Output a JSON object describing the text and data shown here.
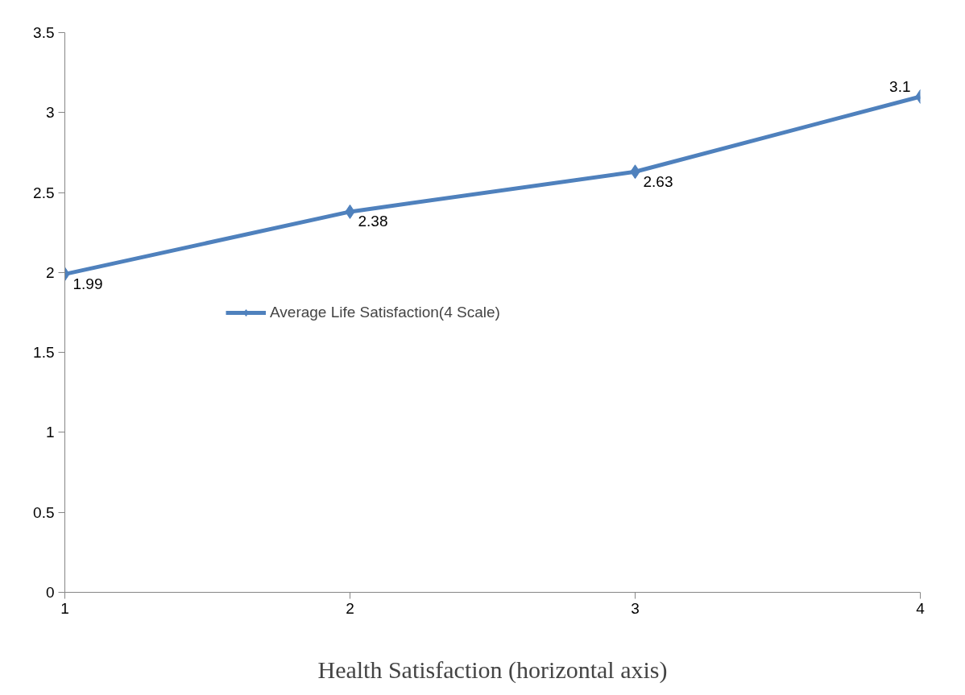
{
  "chart_data": {
    "type": "line",
    "xlabel": "Health Satisfaction (horizontal axis)",
    "x": [
      1,
      2,
      3,
      4
    ],
    "series": [
      {
        "name": "Average Life Satisfaction(4 Scale)",
        "color": "#4f81bd",
        "values": [
          1.99,
          2.38,
          2.63,
          3.1
        ]
      }
    ],
    "xlim": [
      1,
      4
    ],
    "xticks": [
      1,
      2,
      3,
      4
    ],
    "ylim": [
      0,
      3.5
    ],
    "yticks": [
      0,
      0.5,
      1,
      1.5,
      2,
      2.5,
      3,
      3.5
    ],
    "grid": false,
    "legend": "left",
    "marker": "diamond",
    "line_style": "solid",
    "data_labels": true
  }
}
